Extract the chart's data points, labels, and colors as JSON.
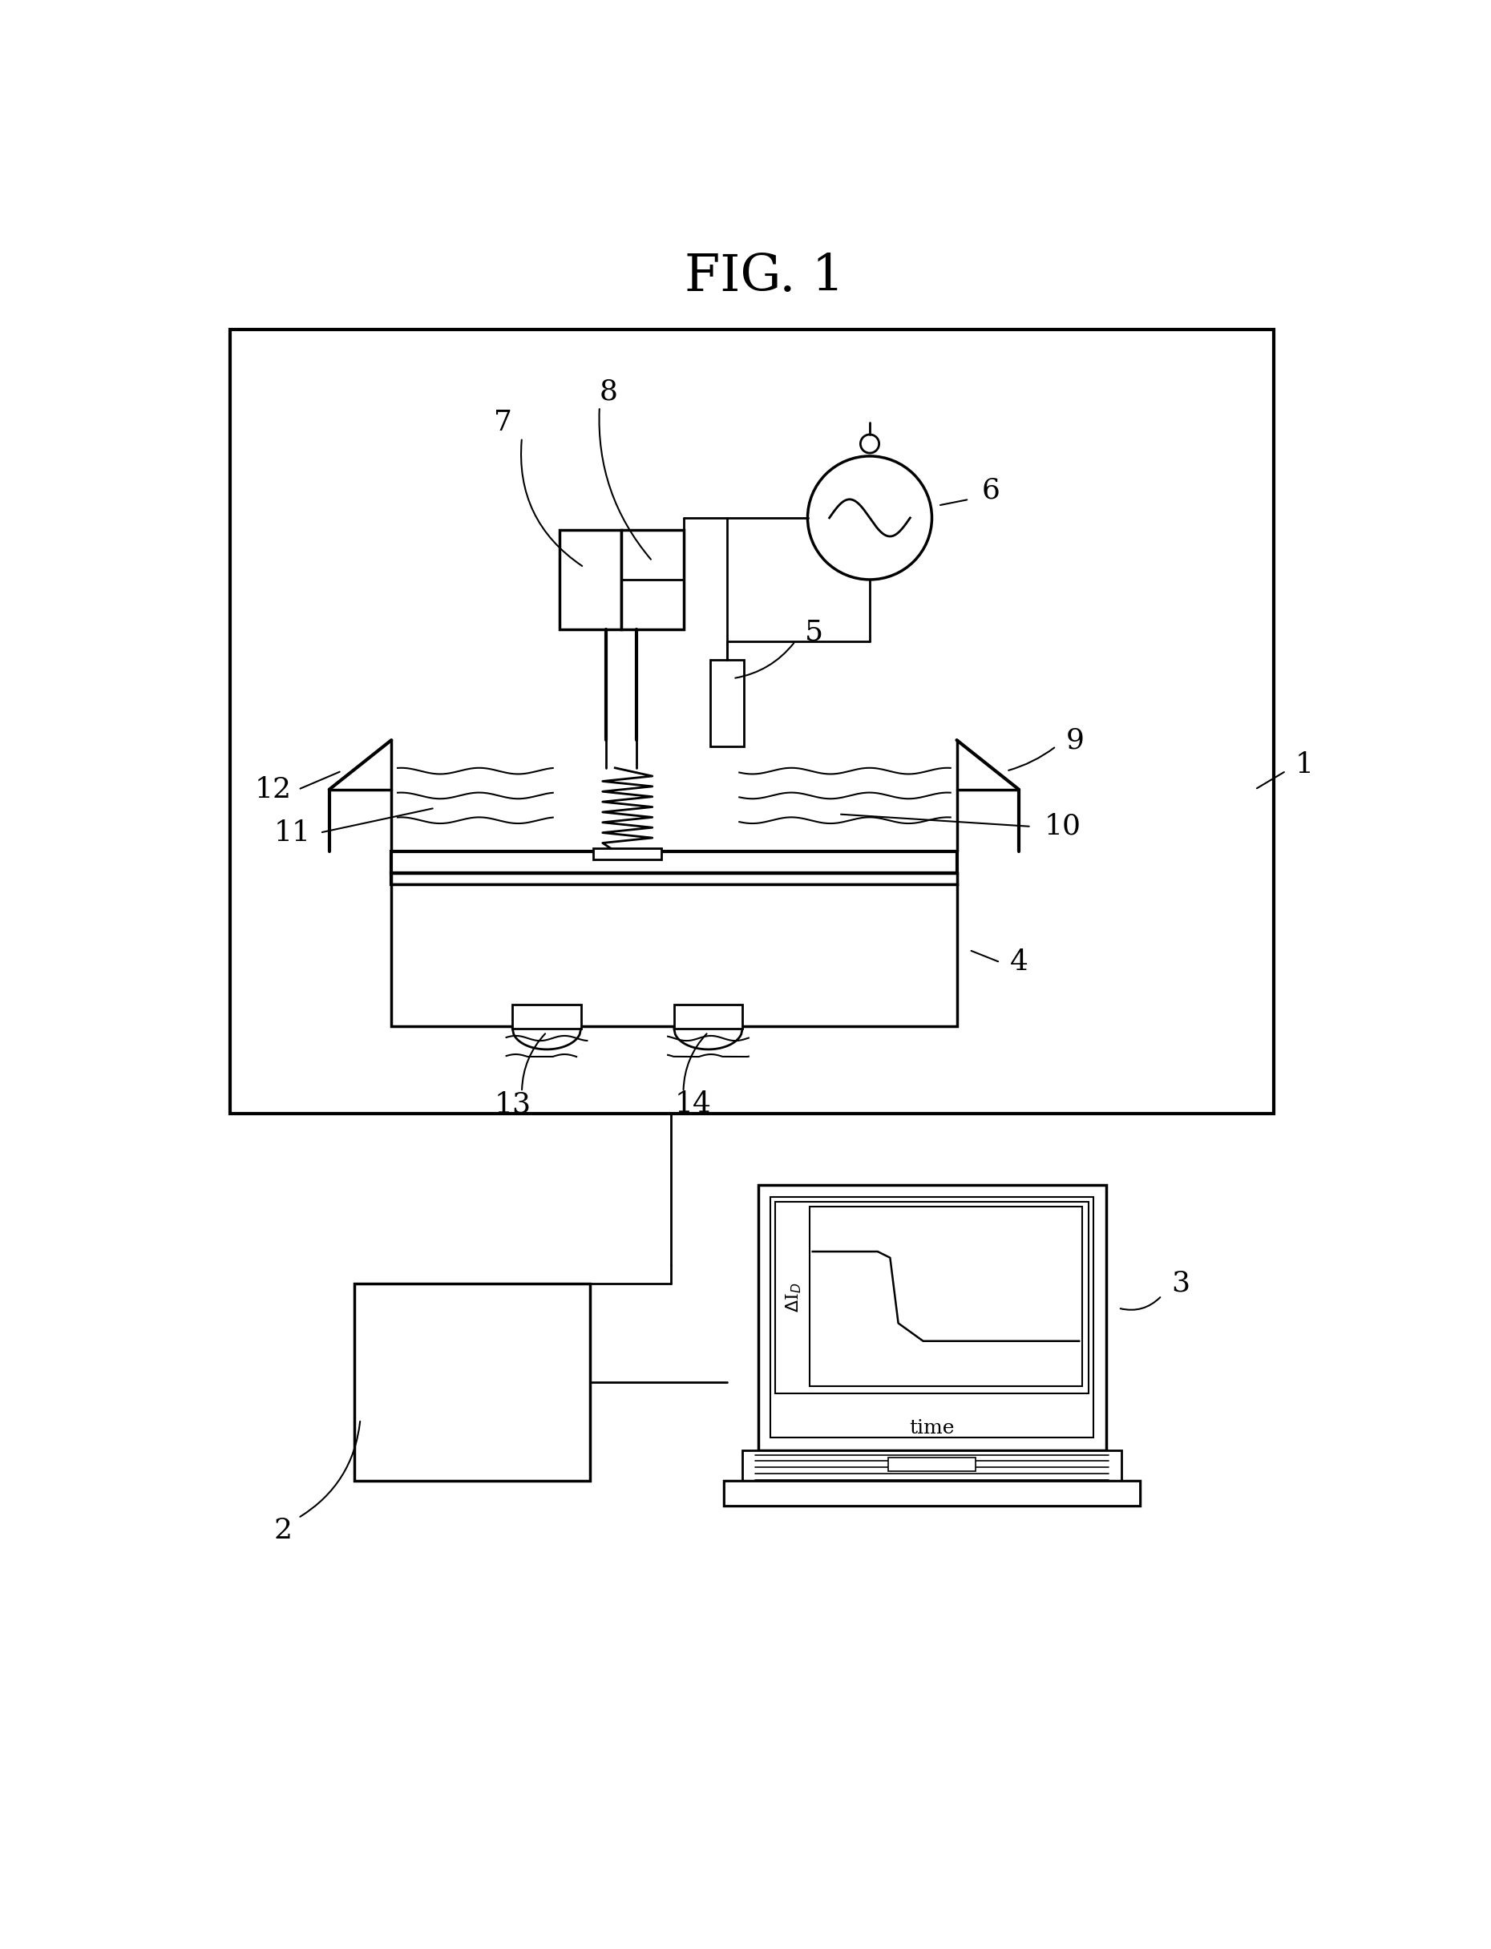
{
  "title": "FIG. 1",
  "bg_color": "#ffffff",
  "line_color": "#000000",
  "fig_width": 18.6,
  "fig_height": 24.31
}
